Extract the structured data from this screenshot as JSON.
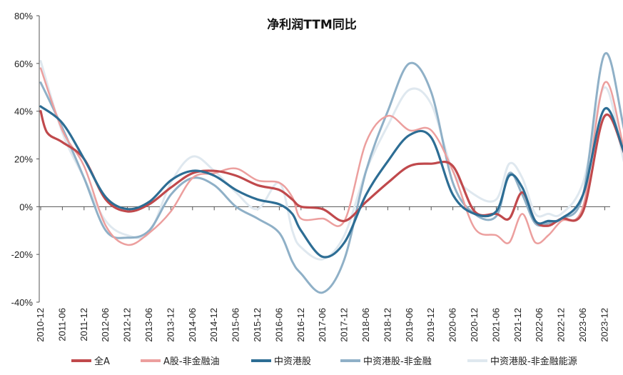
{
  "chart_data": {
    "type": "line",
    "title": "净利润TTM同比",
    "ylim": [
      -40,
      80
    ],
    "yticks": [
      "80%",
      "60%",
      "40%",
      "20%",
      "0%",
      "-20%",
      "-40%"
    ],
    "ytick_values": [
      80,
      60,
      40,
      20,
      0,
      -20,
      -40
    ],
    "x_tick_labels": [
      "2010-12",
      "2011-06",
      "2011-12",
      "2012-06",
      "2012-12",
      "2013-06",
      "2013-12",
      "2014-06",
      "2014-12",
      "2015-06",
      "2015-12",
      "2016-06",
      "2016-12",
      "2017-06",
      "2017-12",
      "2018-06",
      "2018-12",
      "2019-06",
      "2019-12",
      "2020-06",
      "2020-12",
      "2021-06",
      "2021-12",
      "2022-06",
      "2022-12",
      "2023-06",
      "2023-12"
    ],
    "legend_position": "bottom",
    "series": [
      {
        "name": "全A",
        "color": "#c0494c",
        "width": 3.2,
        "points": [
          [
            0,
            40
          ],
          [
            0.15,
            31
          ],
          [
            0.5,
            27
          ],
          [
            1,
            20
          ],
          [
            1.5,
            3
          ],
          [
            2,
            -2
          ],
          [
            2.5,
            1
          ],
          [
            3,
            8
          ],
          [
            3.5,
            14
          ],
          [
            4,
            15
          ],
          [
            4.5,
            13
          ],
          [
            5,
            9
          ],
          [
            5.5,
            7
          ],
          [
            5.8,
            3
          ],
          [
            6,
            0
          ],
          [
            6.5,
            -1
          ],
          [
            7,
            -6
          ],
          [
            7.5,
            2
          ],
          [
            8,
            10
          ],
          [
            8.5,
            17
          ],
          [
            9,
            18
          ],
          [
            9.5,
            17
          ],
          [
            10,
            -2
          ],
          [
            10.5,
            -3
          ],
          [
            10.8,
            -5
          ],
          [
            11.1,
            6
          ],
          [
            11.4,
            -6
          ],
          [
            11.7,
            -8
          ],
          [
            12,
            -5
          ],
          [
            12.5,
            -2
          ],
          [
            13,
            38
          ],
          [
            13.5,
            20
          ],
          [
            14,
            -2
          ],
          [
            14.5,
            0
          ],
          [
            15,
            -1
          ],
          [
            15.5,
            -3
          ],
          [
            16,
            -3
          ],
          [
            16.5,
            -4
          ]
        ]
      },
      {
        "name": "A股-非金融油",
        "color": "#ec9f9e",
        "width": 2.5,
        "points": [
          [
            0,
            58
          ],
          [
            0.5,
            32
          ],
          [
            1,
            17
          ],
          [
            1.5,
            -8
          ],
          [
            2,
            -16
          ],
          [
            2.5,
            -11
          ],
          [
            3,
            -2
          ],
          [
            3.5,
            12
          ],
          [
            4,
            14
          ],
          [
            4.5,
            16
          ],
          [
            5,
            11
          ],
          [
            5.5,
            10
          ],
          [
            5.8,
            4
          ],
          [
            6,
            -5
          ],
          [
            6.5,
            -5
          ],
          [
            7,
            -6
          ],
          [
            7.5,
            27
          ],
          [
            8,
            38
          ],
          [
            8.5,
            32
          ],
          [
            9,
            32
          ],
          [
            9.5,
            15
          ],
          [
            10,
            -9
          ],
          [
            10.5,
            -12
          ],
          [
            10.8,
            -15
          ],
          [
            11.1,
            -3
          ],
          [
            11.4,
            -15
          ],
          [
            11.7,
            -12
          ],
          [
            12,
            -6
          ],
          [
            12.5,
            0
          ],
          [
            13,
            52
          ],
          [
            13.5,
            20
          ],
          [
            14,
            -6
          ],
          [
            14.5,
            -4
          ],
          [
            15,
            -7
          ],
          [
            15.5,
            -8
          ],
          [
            16,
            -5
          ],
          [
            16.5,
            -4
          ]
        ]
      },
      {
        "name": "中资港股",
        "color": "#2d6d94",
        "width": 3.2,
        "points": [
          [
            0,
            42
          ],
          [
            0.5,
            35
          ],
          [
            1,
            20
          ],
          [
            1.5,
            4
          ],
          [
            2,
            -1
          ],
          [
            2.5,
            2
          ],
          [
            3,
            11
          ],
          [
            3.5,
            15
          ],
          [
            4,
            13
          ],
          [
            4.5,
            7
          ],
          [
            5,
            3
          ],
          [
            5.5,
            1
          ],
          [
            5.8,
            -3
          ],
          [
            6,
            -10
          ],
          [
            6.5,
            -21
          ],
          [
            7,
            -15
          ],
          [
            7.5,
            5
          ],
          [
            8,
            19
          ],
          [
            8.5,
            30
          ],
          [
            9,
            29
          ],
          [
            9.5,
            5
          ],
          [
            10,
            -3
          ],
          [
            10.5,
            -2
          ],
          [
            10.8,
            13
          ],
          [
            11.1,
            8
          ],
          [
            11.4,
            -6
          ],
          [
            11.7,
            -6
          ],
          [
            12,
            -5
          ],
          [
            12.5,
            5
          ],
          [
            13,
            41
          ],
          [
            13.5,
            20
          ],
          [
            14,
            0
          ],
          [
            14.5,
            -8
          ],
          [
            15,
            -10
          ],
          [
            15.5,
            -12
          ],
          [
            16,
            -9
          ],
          [
            16.5,
            -2
          ]
        ]
      },
      {
        "name": "中资港股-非金融",
        "color": "#8fb0c7",
        "width": 3.0,
        "points": [
          [
            0,
            52
          ],
          [
            0.5,
            33
          ],
          [
            1,
            12
          ],
          [
            1.5,
            -10
          ],
          [
            2,
            -13
          ],
          [
            2.5,
            -10
          ],
          [
            3,
            5
          ],
          [
            3.5,
            12
          ],
          [
            4,
            9
          ],
          [
            4.5,
            0
          ],
          [
            5,
            -5
          ],
          [
            5.5,
            -11
          ],
          [
            5.8,
            -23
          ],
          [
            6,
            -28
          ],
          [
            6.5,
            -36
          ],
          [
            7,
            -22
          ],
          [
            7.5,
            15
          ],
          [
            8,
            40
          ],
          [
            8.5,
            60
          ],
          [
            9,
            48
          ],
          [
            9.5,
            10
          ],
          [
            10,
            -3
          ],
          [
            10.5,
            -4
          ],
          [
            10.8,
            14
          ],
          [
            11.1,
            5
          ],
          [
            11.4,
            -7
          ],
          [
            11.7,
            -7
          ],
          [
            12,
            -5
          ],
          [
            12.5,
            5
          ],
          [
            13,
            64
          ],
          [
            13.5,
            28
          ],
          [
            14,
            -2
          ],
          [
            14.5,
            -13
          ],
          [
            15,
            -11
          ],
          [
            15.5,
            -17
          ],
          [
            16,
            -12
          ],
          [
            16.5,
            -6
          ]
        ]
      },
      {
        "name": "中资港股-非金融能源",
        "color": "#dfe8ef",
        "width": 3.0,
        "points": [
          [
            0,
            61
          ],
          [
            0.5,
            31
          ],
          [
            1,
            12
          ],
          [
            1.5,
            -6
          ],
          [
            2,
            -12
          ],
          [
            2.5,
            -11
          ],
          [
            3,
            10
          ],
          [
            3.5,
            21
          ],
          [
            4,
            15
          ],
          [
            4.5,
            6
          ],
          [
            5,
            -1
          ],
          [
            5.5,
            10
          ],
          [
            5.8,
            -10
          ],
          [
            6,
            -17
          ],
          [
            6.5,
            -22
          ],
          [
            7,
            -12
          ],
          [
            7.5,
            15
          ],
          [
            8,
            34
          ],
          [
            8.5,
            49
          ],
          [
            9,
            43
          ],
          [
            9.5,
            15
          ],
          [
            10,
            5
          ],
          [
            10.5,
            3
          ],
          [
            10.8,
            18
          ],
          [
            11.1,
            12
          ],
          [
            11.4,
            -3
          ],
          [
            11.7,
            -3
          ],
          [
            12,
            -3
          ],
          [
            12.5,
            10
          ],
          [
            13,
            50
          ],
          [
            13.5,
            15
          ],
          [
            14,
            -3
          ],
          [
            14.5,
            -24
          ],
          [
            15,
            -22
          ],
          [
            15.5,
            -22
          ],
          [
            16,
            -9
          ],
          [
            16.5,
            -5
          ]
        ]
      }
    ]
  }
}
